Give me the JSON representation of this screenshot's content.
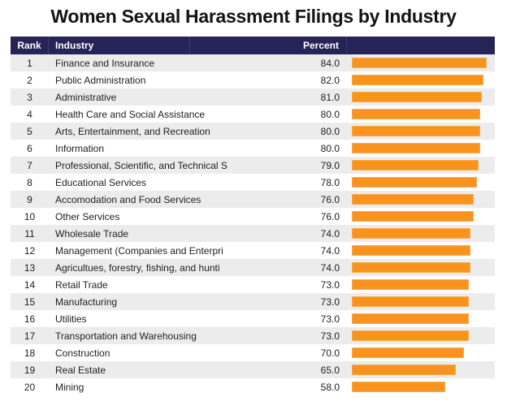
{
  "title": "Women Sexual Harassment Filings by Industry",
  "table": {
    "columns": [
      "Rank",
      "Industry",
      "Percent"
    ],
    "rows": [
      {
        "rank": "1",
        "industry": "Finance and Insurance",
        "percent": "84.0",
        "value": 84
      },
      {
        "rank": "2",
        "industry": "Public Administration",
        "percent": "82.0",
        "value": 82
      },
      {
        "rank": "3",
        "industry": "Administrative",
        "percent": "81.0",
        "value": 81
      },
      {
        "rank": "4",
        "industry": "Health Care and Social Assistance",
        "percent": "80.0",
        "value": 80
      },
      {
        "rank": "5",
        "industry": "Arts, Entertainment, and Recreation",
        "percent": "80.0",
        "value": 80
      },
      {
        "rank": "6",
        "industry": "Information",
        "percent": "80.0",
        "value": 80
      },
      {
        "rank": "7",
        "industry": "Professional, Scientific, and Technical S",
        "percent": "79.0",
        "value": 79
      },
      {
        "rank": "8",
        "industry": "Educational Services",
        "percent": "78.0",
        "value": 78
      },
      {
        "rank": "9",
        "industry": "Accomodation and Food Services",
        "percent": "76.0",
        "value": 76
      },
      {
        "rank": "10",
        "industry": "Other Services",
        "percent": "76.0",
        "value": 76
      },
      {
        "rank": "11",
        "industry": "Wholesale Trade",
        "percent": "74.0",
        "value": 74
      },
      {
        "rank": "12",
        "industry": "Management (Companies and Enterpri",
        "percent": "74.0",
        "value": 74
      },
      {
        "rank": "13",
        "industry": "Agricultues, forestry, fishing, and hunti",
        "percent": "74.0",
        "value": 74
      },
      {
        "rank": "14",
        "industry": "Retail Trade",
        "percent": "73.0",
        "value": 73
      },
      {
        "rank": "15",
        "industry": "Manufacturing",
        "percent": "73.0",
        "value": 73
      },
      {
        "rank": "16",
        "industry": "Utilities",
        "percent": "73.0",
        "value": 73
      },
      {
        "rank": "17",
        "industry": "Transportation and Warehousing",
        "percent": "73.0",
        "value": 73
      },
      {
        "rank": "18",
        "industry": "Construction",
        "percent": "70.0",
        "value": 70
      },
      {
        "rank": "19",
        "industry": "Real Estate",
        "percent": "65.0",
        "value": 65
      },
      {
        "rank": "20",
        "industry": "Mining",
        "percent": "58.0",
        "value": 58
      }
    ]
  },
  "colors": {
    "header_bg": "#262357",
    "header_text": "#FFFFFF",
    "bar_fill": "#F8941E",
    "bar_edge": "#FBAA4D",
    "row_alt_bg": "#ECECED",
    "row_bg": "#FFFFFF",
    "row_text": "#1E1E1E",
    "title_color": "#131313"
  },
  "chart_data": {
    "type": "bar",
    "orientation": "horizontal",
    "title": "Women Sexual Harassment Filings by Industry",
    "xlabel": "Percent",
    "xlim": [
      0,
      90
    ],
    "ranks": [
      1,
      2,
      3,
      4,
      5,
      6,
      7,
      8,
      9,
      10,
      11,
      12,
      13,
      14,
      15,
      16,
      17,
      18,
      19,
      20
    ],
    "categories": [
      "Finance and Insurance",
      "Public Administration",
      "Administrative",
      "Health Care and Social Assistance",
      "Arts, Entertainment, and Recreation",
      "Information",
      "Professional, Scientific, and Technical S",
      "Educational Services",
      "Accomodation and Food Services",
      "Other Services",
      "Wholesale Trade",
      "Management (Companies and Enterpri",
      "Agricultues, forestry, fishing, and hunti",
      "Retail Trade",
      "Manufacturing",
      "Utilities",
      "Transportation and Warehousing",
      "Construction",
      "Real Estate",
      "Mining"
    ],
    "values": [
      84.0,
      82.0,
      81.0,
      80.0,
      80.0,
      80.0,
      79.0,
      78.0,
      76.0,
      76.0,
      74.0,
      74.0,
      74.0,
      73.0,
      73.0,
      73.0,
      73.0,
      70.0,
      65.0,
      58.0
    ],
    "legend": null,
    "grid": false
  }
}
